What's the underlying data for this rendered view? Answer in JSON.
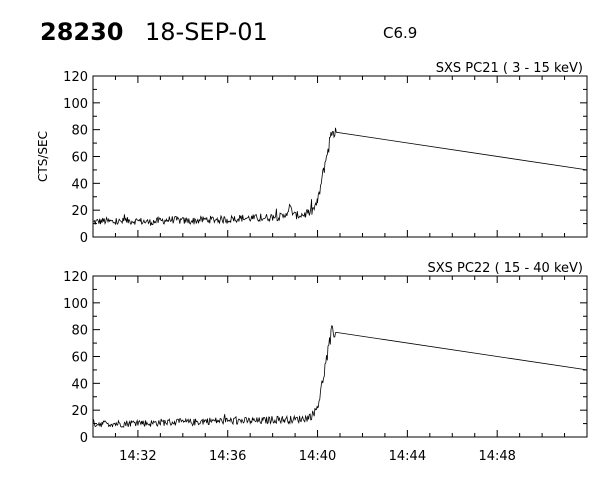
{
  "header": {
    "event_id": "28230",
    "date": "18-SEP-01",
    "flare_class": "C6.9"
  },
  "chart_data": [
    {
      "type": "line",
      "title": "SXS PC21  (  3 - 15 keV)",
      "ylabel": "CTS/SEC",
      "xlabel": "",
      "ylim": [
        0,
        120
      ],
      "yticks": [
        0,
        20,
        40,
        60,
        80,
        100,
        120
      ],
      "xlim": [
        "14:30",
        "14:52"
      ],
      "xticks": [
        "14:32",
        "14:36",
        "14:40",
        "14:44",
        "14:48"
      ],
      "grid": false,
      "color": "#000000",
      "series": [
        {
          "x": [
            "14:30:00",
            "14:30:30",
            "14:31:00",
            "14:31:30",
            "14:32:00",
            "14:32:30",
            "14:33:00",
            "14:33:30",
            "14:34:00",
            "14:34:30",
            "14:35:00",
            "14:35:30",
            "14:36:00",
            "14:36:30",
            "14:37:00",
            "14:37:30",
            "14:38:00",
            "14:38:30",
            "14:38:45",
            "14:39:00",
            "14:39:30",
            "14:39:45",
            "14:40:00",
            "14:40:10",
            "14:40:20",
            "14:40:30",
            "14:40:40",
            "14:40:50",
            "14:52:00"
          ],
          "y": [
            11,
            12,
            11,
            12,
            12,
            11,
            12,
            13,
            12,
            12,
            13,
            13,
            13,
            14,
            14,
            14,
            15,
            15,
            22,
            16,
            17,
            19,
            26,
            40,
            55,
            68,
            80,
            78,
            50
          ]
        }
      ]
    },
    {
      "type": "line",
      "title": "SXS PC22  ( 15 - 40 keV)",
      "ylabel": "",
      "xlabel": "",
      "ylim": [
        0,
        120
      ],
      "yticks": [
        0,
        20,
        40,
        60,
        80,
        100,
        120
      ],
      "xlim": [
        "14:30",
        "14:52"
      ],
      "xticks": [
        "14:32",
        "14:36",
        "14:40",
        "14:44",
        "14:48"
      ],
      "grid": false,
      "color": "#000000",
      "series": [
        {
          "x": [
            "14:30:00",
            "14:30:30",
            "14:31:00",
            "14:31:30",
            "14:32:00",
            "14:32:30",
            "14:33:00",
            "14:33:30",
            "14:34:00",
            "14:34:30",
            "14:35:00",
            "14:35:30",
            "14:36:00",
            "14:36:30",
            "14:37:00",
            "14:37:30",
            "14:38:00",
            "14:38:30",
            "14:39:00",
            "14:39:30",
            "14:39:45",
            "14:40:00",
            "14:40:10",
            "14:40:20",
            "14:40:30",
            "14:40:40",
            "14:40:50",
            "14:52:00"
          ],
          "y": [
            10,
            10,
            10,
            10,
            11,
            10,
            11,
            11,
            11,
            11,
            12,
            12,
            12,
            12,
            12,
            12,
            13,
            13,
            13,
            14,
            16,
            22,
            36,
            52,
            66,
            80,
            78,
            50
          ]
        }
      ]
    }
  ]
}
